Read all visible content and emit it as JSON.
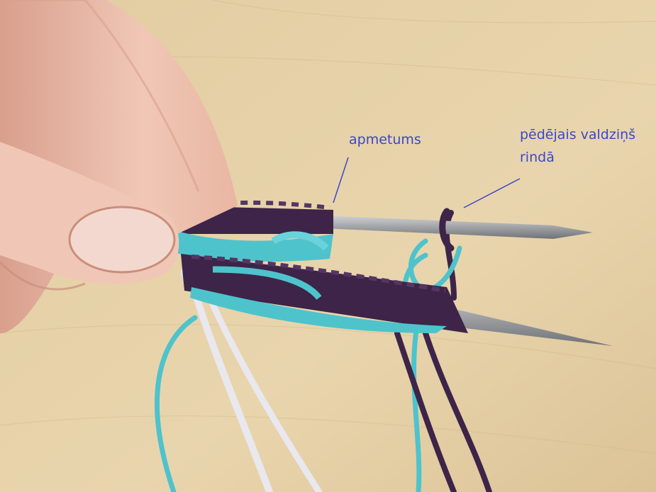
{
  "annotations": {
    "apmetums": "apmetums",
    "last_stitch_line1": "pēdējais valdziņš",
    "last_stitch_line2": "rindā"
  },
  "colors": {
    "annotation_text": "#3a48c8",
    "table_surface": "#e7d2a9",
    "yarn_purple": "#3d2448",
    "yarn_turquoise": "#4ec3cc",
    "yarn_white": "#e9e8ee",
    "needle_metal": "#a9abad",
    "skin": "#edc0ae"
  },
  "subjects": [
    "hand",
    "knitting-needles",
    "purple-yarn",
    "turquoise-yarn",
    "white-yarn",
    "wooden-table"
  ]
}
